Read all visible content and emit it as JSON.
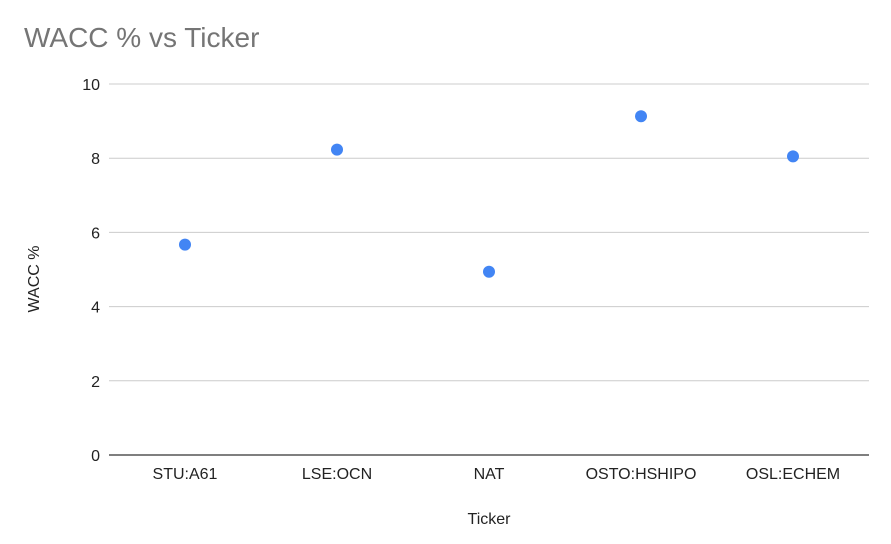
{
  "chart_data": {
    "type": "scatter",
    "title": "WACC % vs Ticker",
    "xlabel": "Ticker",
    "ylabel": "WACC %",
    "categories": [
      "STU:A61",
      "LSE:OCN",
      "NAT",
      "OSTO:HSHIPO",
      "OSL:ECHEM"
    ],
    "series": [
      {
        "values": [
          5.67,
          8.23,
          4.94,
          9.13,
          8.05
        ]
      }
    ],
    "ylim": [
      0,
      10
    ],
    "yticks": [
      "0",
      "2",
      "4",
      "6",
      "8",
      "10"
    ],
    "grid": true,
    "legend": "none",
    "colors": {
      "point": "#4285f4",
      "grid": "#cccccc",
      "axis": "#333333"
    }
  }
}
